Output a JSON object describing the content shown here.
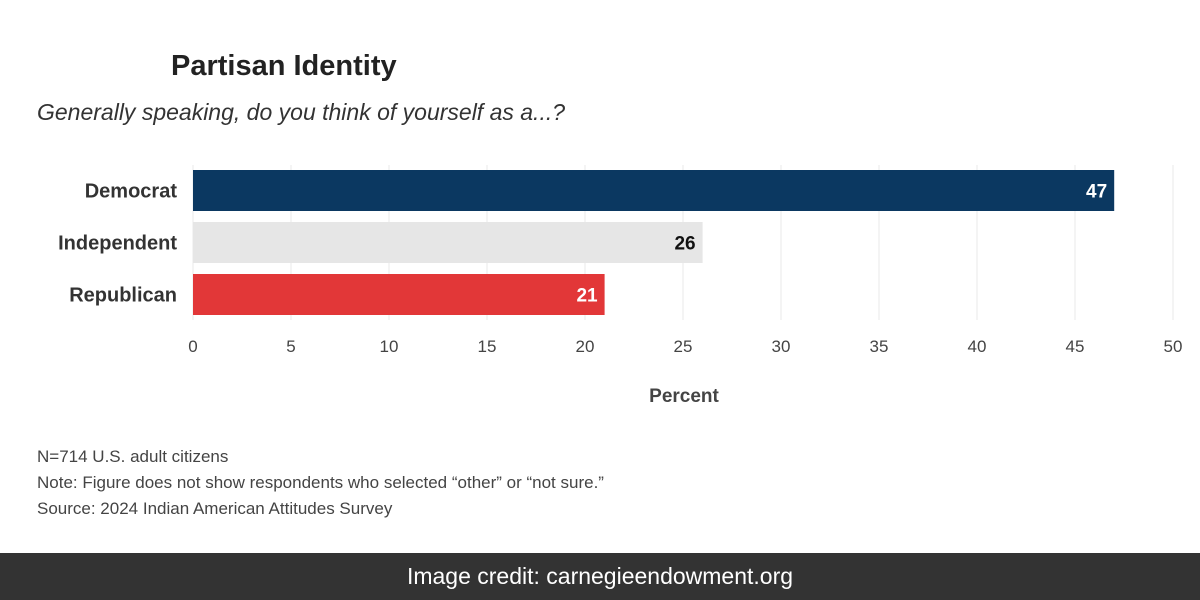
{
  "chart_data": {
    "type": "bar",
    "orientation": "horizontal",
    "title": "Partisan Identity",
    "subtitle": "Generally speaking, do you think of yourself as a...?",
    "categories": [
      "Democrat",
      "Independent",
      "Republican"
    ],
    "values": [
      47,
      26,
      21
    ],
    "data_labels": [
      "47",
      "26",
      "21"
    ],
    "bar_colors": [
      "#0b3861",
      "#e6e6e6",
      "#e23738"
    ],
    "label_colors": [
      "#ffffff",
      "#111111",
      "#ffffff"
    ],
    "xlabel": "Percent",
    "ylabel": "",
    "xlim": [
      0,
      50
    ],
    "x_ticks": [
      0,
      5,
      10,
      15,
      20,
      25,
      30,
      35,
      40,
      45,
      50
    ],
    "grid": "vertical",
    "legend": "none"
  },
  "notes": {
    "sample": "N=714 U.S. adult citizens",
    "note": "Note: Figure does not show respondents who selected “other” or “not sure.”",
    "source": "Source: 2024 Indian American Attitudes Survey"
  },
  "credit": {
    "text": "Image credit: carnegieendowment.org"
  }
}
